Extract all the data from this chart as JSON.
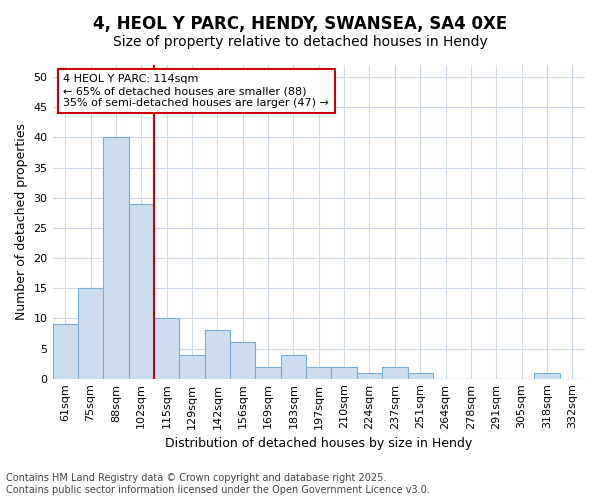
{
  "title1": "4, HEOL Y PARC, HENDY, SWANSEA, SA4 0XE",
  "title2": "Size of property relative to detached houses in Hendy",
  "xlabel": "Distribution of detached houses by size in Hendy",
  "ylabel": "Number of detached properties",
  "categories": [
    "61sqm",
    "75sqm",
    "88sqm",
    "102sqm",
    "115sqm",
    "129sqm",
    "142sqm",
    "156sqm",
    "169sqm",
    "183sqm",
    "197sqm",
    "210sqm",
    "224sqm",
    "237sqm",
    "251sqm",
    "264sqm",
    "278sqm",
    "291sqm",
    "305sqm",
    "318sqm",
    "332sqm"
  ],
  "values": [
    9,
    15,
    40,
    29,
    10,
    4,
    8,
    6,
    2,
    4,
    2,
    2,
    1,
    2,
    1,
    0,
    0,
    0,
    0,
    1,
    0
  ],
  "bar_color": "#ccddf0",
  "bar_edge_color": "#7aadd4",
  "vline_x_index": 4,
  "vline_color": "#cc0000",
  "annotation_text": "4 HEOL Y PARC: 114sqm\n← 65% of detached houses are smaller (88)\n35% of semi-detached houses are larger (47) →",
  "annotation_box_color": "#ffffff",
  "annotation_box_edge": "#cc0000",
  "ylim": [
    0,
    52
  ],
  "yticks": [
    0,
    5,
    10,
    15,
    20,
    25,
    30,
    35,
    40,
    45,
    50
  ],
  "background_color": "#ffffff",
  "fig_background_color": "#ffffff",
  "grid_color": "#ccdaeb",
  "footer": "Contains HM Land Registry data © Crown copyright and database right 2025.\nContains public sector information licensed under the Open Government Licence v3.0.",
  "title_fontsize": 12,
  "subtitle_fontsize": 10,
  "axis_label_fontsize": 9,
  "tick_fontsize": 8,
  "annotation_fontsize": 8,
  "footer_fontsize": 7
}
